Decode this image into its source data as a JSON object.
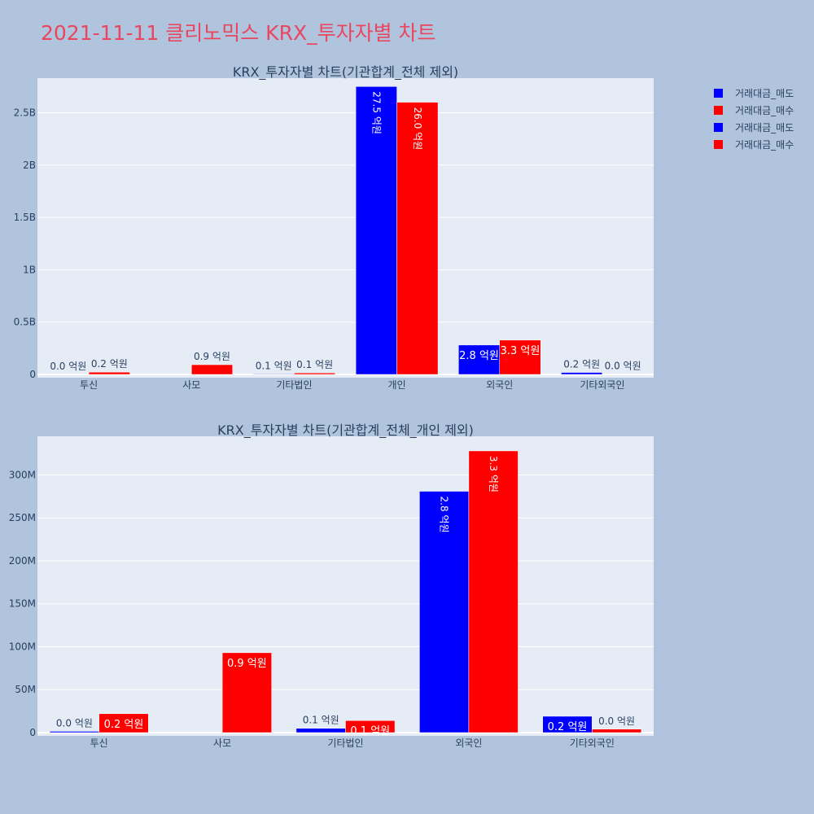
{
  "title": "2021-11-11 클리노믹스 KRX_투자자별 차트",
  "colors": {
    "page_bg": "#b0c4de",
    "plot_bg": "#e5ecf6",
    "title": "#e8475f",
    "sell": "#0000ff",
    "buy": "#ff0000",
    "text": "#2a3f5f"
  },
  "legend": [
    {
      "name": "거래대금_매도",
      "color": "#0000ff"
    },
    {
      "name": "거래대금_매수",
      "color": "#ff0000"
    },
    {
      "name": "거래대금_매도",
      "color": "#0000ff"
    },
    {
      "name": "거래대금_매수",
      "color": "#ff0000"
    }
  ],
  "chart_data": [
    {
      "type": "bar",
      "title": "KRX_투자자별 차트(기관합계_전체 제외)",
      "categories": [
        "투신",
        "사모",
        "기타법인",
        "개인",
        "외국인",
        "기타외국인"
      ],
      "ylim": [
        0,
        2830000000
      ],
      "yticks": [
        {
          "value": 0,
          "label": "0"
        },
        {
          "value": 500000000,
          "label": "0.5B"
        },
        {
          "value": 1000000000,
          "label": "1B"
        },
        {
          "value": 1500000000,
          "label": "1.5B"
        },
        {
          "value": 2000000000,
          "label": "2B"
        },
        {
          "value": 2500000000,
          "label": "2.5B"
        }
      ],
      "grid": true,
      "series": [
        {
          "name": "거래대금_매도",
          "color": "#0000ff",
          "values": [
            1500000,
            0,
            5000000,
            2750000000,
            281000000,
            19000000
          ],
          "labels": [
            "0.0 억원",
            "",
            "0.1 억원",
            "27.5 억원",
            "2.8 억원",
            "0.2 억원"
          ]
        },
        {
          "name": "거래대금_매수",
          "color": "#ff0000",
          "values": [
            22000000,
            93000000,
            14000000,
            2600000000,
            328000000,
            4000000
          ],
          "labels": [
            "0.2 억원",
            "0.9 억원",
            "0.1 억원",
            "26.0 억원",
            "3.3 억원",
            "0.0 억원"
          ]
        }
      ]
    },
    {
      "type": "bar",
      "title": "KRX_투자자별 차트(기관합계_전체_개인 제외)",
      "categories": [
        "투신",
        "사모",
        "기타법인",
        "외국인",
        "기타외국인"
      ],
      "ylim": [
        0,
        345000000
      ],
      "yticks": [
        {
          "value": 0,
          "label": "0"
        },
        {
          "value": 50000000,
          "label": "50M"
        },
        {
          "value": 100000000,
          "label": "100M"
        },
        {
          "value": 150000000,
          "label": "150M"
        },
        {
          "value": 200000000,
          "label": "200M"
        },
        {
          "value": 250000000,
          "label": "250M"
        },
        {
          "value": 300000000,
          "label": "300M"
        }
      ],
      "grid": true,
      "series": [
        {
          "name": "거래대금_매도",
          "color": "#0000ff",
          "values": [
            1500000,
            0,
            5000000,
            281000000,
            19000000
          ],
          "labels": [
            "0.0 억원",
            "",
            "0.1 억원",
            "2.8 억원",
            "0.2 억원"
          ]
        },
        {
          "name": "거래대금_매수",
          "color": "#ff0000",
          "values": [
            22000000,
            93000000,
            14000000,
            328000000,
            4000000
          ],
          "labels": [
            "0.2 억원",
            "0.9 억원",
            "0.1 억원",
            "3.3 억원",
            "0.0 억원"
          ]
        }
      ]
    }
  ]
}
